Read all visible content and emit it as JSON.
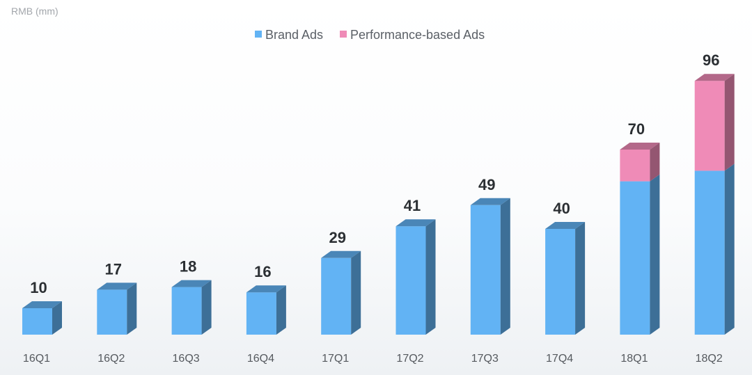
{
  "chart_data": {
    "type": "bar",
    "stacked": true,
    "unit_label": "RMB (mm)",
    "categories": [
      "16Q1",
      "16Q2",
      "16Q3",
      "16Q4",
      "17Q1",
      "17Q2",
      "17Q3",
      "17Q4",
      "18Q1",
      "18Q2"
    ],
    "series": [
      {
        "name": "Brand Ads",
        "color": "#62b3f4",
        "values": [
          10,
          17,
          18,
          16,
          29,
          41,
          49,
          40,
          58,
          62
        ]
      },
      {
        "name": "Performance-based Ads",
        "color": "#ef8bb7",
        "values": [
          0,
          0,
          0,
          0,
          0,
          0,
          0,
          0,
          12,
          34
        ]
      }
    ],
    "totals": [
      10,
      17,
      18,
      16,
      29,
      41,
      49,
      40,
      70,
      96
    ],
    "ylim": [
      0,
      96
    ],
    "legend_position": "top-center",
    "grid": false
  }
}
